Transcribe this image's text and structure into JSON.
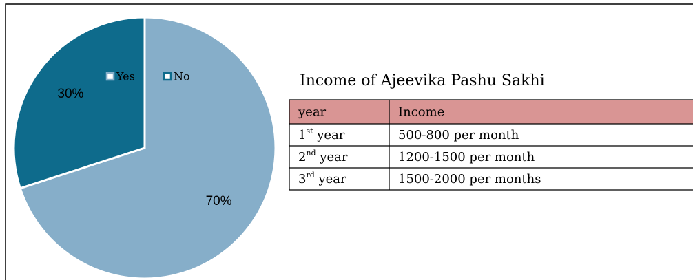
{
  "chart_data": {
    "type": "pie",
    "categories": [
      "Yes",
      "No"
    ],
    "values": [
      70,
      30
    ],
    "value_labels": [
      "70%",
      "30%"
    ],
    "colors": [
      "#86aec9",
      "#0e6b8c"
    ],
    "legend": "top"
  },
  "table": {
    "title": "Income of Ajeevika Pashu Sakhi",
    "header": [
      "year",
      "Income"
    ],
    "rows": [
      [
        {
          "num": "1",
          "sup": "st",
          "rest": " year"
        },
        "500-800 per month"
      ],
      [
        {
          "num": "2",
          "sup": "nd",
          "rest": " year"
        },
        "1200-1500 per month"
      ],
      [
        {
          "num": "3",
          "sup": "rd",
          "rest": " year"
        },
        "1500-2000 per months"
      ]
    ]
  }
}
